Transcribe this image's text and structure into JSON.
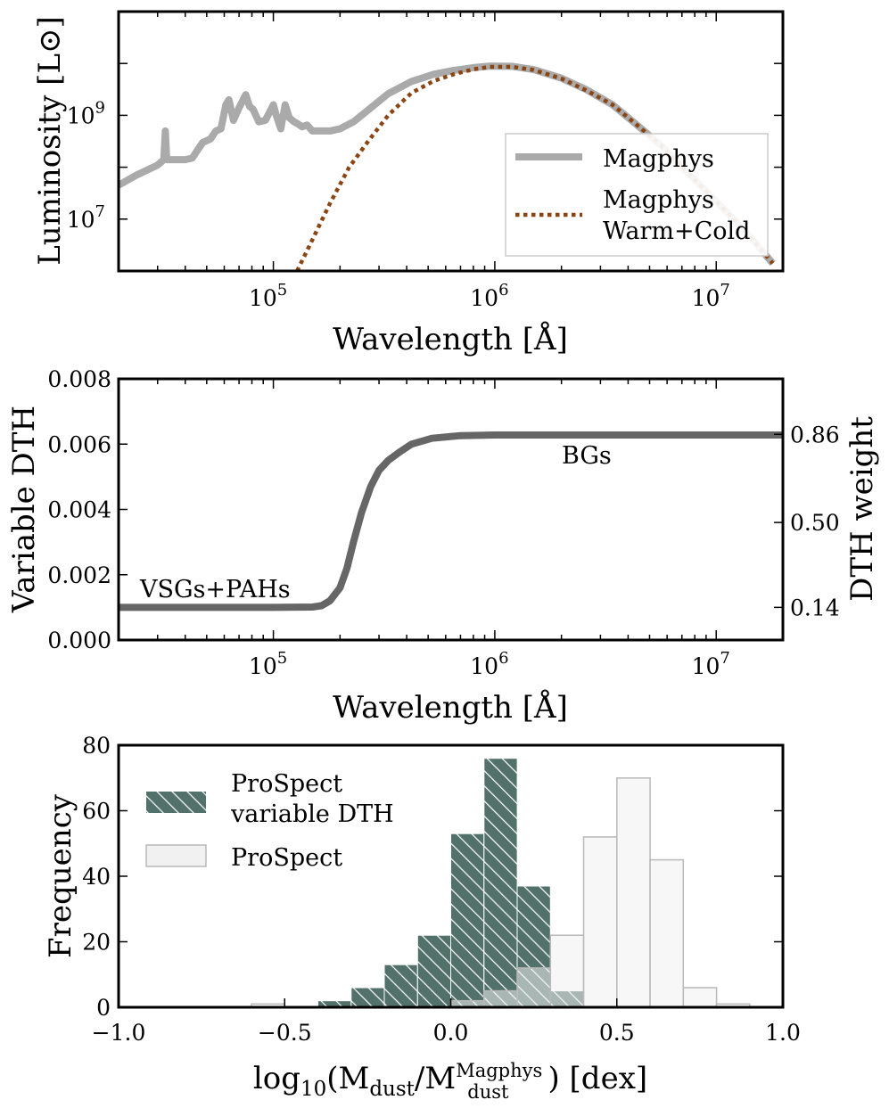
{
  "chart_data": [
    {
      "type": "line",
      "panel": "top",
      "xscale": "log",
      "yscale": "log",
      "xlim": [
        20000,
        20000000
      ],
      "ylim": [
        1000000,
        100000000000
      ],
      "xlabel": "Wavelength [Å]",
      "ylabel": "Luminosity [L⊙]",
      "xticks": [
        {
          "value": 100000,
          "base": "10",
          "exp": "5"
        },
        {
          "value": 1000000,
          "base": "10",
          "exp": "6"
        },
        {
          "value": 10000000,
          "base": "10",
          "exp": "7"
        }
      ],
      "yticks": [
        {
          "value": 10000000,
          "base": "10",
          "exp": "7"
        },
        {
          "value": 1000000000,
          "base": "10",
          "exp": "9"
        }
      ],
      "legend_position": "lower-right",
      "series": [
        {
          "name": "Magphys",
          "color": "#aaaaaa",
          "style": "solid",
          "x": [
            20000,
            24000,
            30000,
            32000,
            32500,
            33000,
            40000,
            43000,
            46000,
            48000,
            52000,
            55000,
            58000,
            61000,
            63000,
            66000,
            70000,
            75000,
            78000,
            81000,
            86000,
            92000,
            100000,
            103000,
            108000,
            113000,
            118000,
            124000,
            128000,
            135000,
            142000,
            150000,
            160000,
            180000,
            200000,
            230000,
            270000,
            330000,
            420000,
            530000,
            660000,
            800000,
            950000,
            1200000,
            1500000,
            2000000,
            2600000,
            3400000,
            4300000,
            5600000,
            7200000,
            9300000,
            12000000,
            15000000,
            18000000
          ],
          "y": [
            45000000,
            70000000,
            110000000,
            140000000,
            500000000,
            140000000,
            140000000,
            150000000,
            230000000,
            300000000,
            350000000,
            500000000,
            550000000,
            1600000000,
            2000000000,
            800000000,
            1400000000,
            2500000000,
            1500000000,
            1300000000,
            750000000,
            800000000,
            1600000000,
            1000000000,
            550000000,
            1600000000,
            900000000,
            750000000,
            700000000,
            600000000,
            650000000,
            500000000,
            500000000,
            500000000,
            550000000,
            750000000,
            1300000000,
            2600000000,
            4500000000,
            6200000000,
            7400000000,
            8300000000,
            8900000000,
            8800000000,
            7600000000,
            5200000000,
            3100000000,
            1600000000,
            700000000,
            270000000,
            90000000,
            30000000,
            10000000,
            3500000,
            1400000
          ]
        },
        {
          "name": "Magphys Warm+Cold",
          "label_lines": [
            "Magphys",
            "Warm+Cold"
          ],
          "color": "#8b4513",
          "style": "dotted",
          "x": [
            128000,
            150000,
            180000,
            220000,
            270000,
            330000,
            420000,
            530000,
            660000,
            800000,
            950000,
            1200000,
            1500000,
            2000000,
            2600000,
            3400000,
            4300000,
            5600000,
            7200000,
            9300000,
            12000000,
            15000000,
            18000000
          ],
          "y": [
            1000000,
            4000000,
            20000000,
            100000000,
            330000000,
            1000000000,
            2700000000,
            4600000000,
            6300000000,
            7700000000,
            8600000000,
            8600000000,
            7500000000,
            5100000000,
            3000000000,
            1600000000,
            700000000,
            270000000,
            90000000,
            30000000,
            10000000,
            3500000,
            1400000
          ]
        }
      ]
    },
    {
      "type": "line",
      "panel": "middle",
      "xscale": "log",
      "xlim": [
        20000,
        20000000
      ],
      "ylim": [
        0,
        0.008
      ],
      "xlabel": "Wavelength [Å]",
      "ylabel": "Variable DTH",
      "ylabel_right": "DTH weight",
      "xticks": [
        {
          "value": 100000,
          "base": "10",
          "exp": "5"
        },
        {
          "value": 1000000,
          "base": "10",
          "exp": "6"
        },
        {
          "value": 10000000,
          "base": "10",
          "exp": "7"
        }
      ],
      "yticks": [
        {
          "value": 0.0,
          "label": "0.000"
        },
        {
          "value": 0.002,
          "label": "0.002"
        },
        {
          "value": 0.004,
          "label": "0.004"
        },
        {
          "value": 0.006,
          "label": "0.006"
        },
        {
          "value": 0.008,
          "label": "0.008"
        }
      ],
      "yticks_right": [
        {
          "value": 0.001,
          "label": "0.14"
        },
        {
          "value": 0.0036,
          "label": "0.50"
        },
        {
          "value": 0.0063,
          "label": "0.86"
        }
      ],
      "annotations": [
        {
          "text": "VSGs+PAHs",
          "x": 68000,
          "y": 0.00125
        },
        {
          "text": "BGs",
          "x": 2000000,
          "y": 0.0057
        }
      ],
      "series": [
        {
          "name": "Variable DTH",
          "color": "#666666",
          "x": [
            20000,
            100000,
            150000,
            165000,
            180000,
            200000,
            215000,
            230000,
            250000,
            275000,
            300000,
            330000,
            370000,
            420000,
            520000,
            700000,
            1000000,
            3000000,
            20000000
          ],
          "y": [
            0.001,
            0.001,
            0.00101,
            0.00105,
            0.0012,
            0.0016,
            0.0022,
            0.003,
            0.0039,
            0.0047,
            0.0052,
            0.0055,
            0.00575,
            0.006,
            0.00618,
            0.00626,
            0.00628,
            0.00628,
            0.00628
          ]
        }
      ]
    },
    {
      "type": "bar",
      "subtype": "histogram",
      "panel": "bottom",
      "xlim": [
        -1.0,
        1.0
      ],
      "ylim": [
        0,
        80
      ],
      "xlabel_parts": {
        "prefix": "log",
        "sub1": "10",
        "open": "(M",
        "sub2": "dust",
        "slash": "/M",
        "sup3": "Magphys",
        "sub3": "dust",
        "close": ") [dex]"
      },
      "ylabel": "Frequency",
      "xticks": [
        {
          "value": -1.0,
          "label": "−1.0"
        },
        {
          "value": -0.5,
          "label": "−0.5"
        },
        {
          "value": 0.0,
          "label": "0.0"
        },
        {
          "value": 0.5,
          "label": "0.5"
        },
        {
          "value": 1.0,
          "label": "1.0"
        }
      ],
      "yticks": [
        0,
        20,
        40,
        60,
        80
      ],
      "legend_position": "top-left",
      "series": [
        {
          "name": "ProSpect",
          "color": "#f1f1f1",
          "edge": "#b9b9b9",
          "bins": [
            -1.0,
            -0.9,
            -0.8,
            -0.7,
            -0.6,
            -0.5,
            -0.4,
            -0.3,
            -0.2,
            -0.1,
            0.0,
            0.1,
            0.2,
            0.3,
            0.4,
            0.5,
            0.6,
            0.7,
            0.8,
            0.9
          ],
          "values": [
            0,
            0,
            0,
            0,
            1,
            0,
            0,
            0,
            0,
            0,
            2,
            5,
            12,
            22,
            52,
            70,
            45,
            6,
            1
          ]
        },
        {
          "name": "ProSpect variable DTH",
          "label_lines": [
            "ProSpect",
            "variable DTH"
          ],
          "color": "#52716b",
          "hatch": "\\\\",
          "bins": [
            -1.0,
            -0.9,
            -0.8,
            -0.7,
            -0.6,
            -0.5,
            -0.4,
            -0.3,
            -0.2,
            -0.1,
            0.0,
            0.1,
            0.2,
            0.3,
            0.4
          ],
          "values": [
            0.5,
            0,
            0.5,
            0,
            0,
            0.5,
            2,
            6,
            13,
            22,
            53,
            76,
            37,
            5
          ]
        }
      ]
    }
  ]
}
